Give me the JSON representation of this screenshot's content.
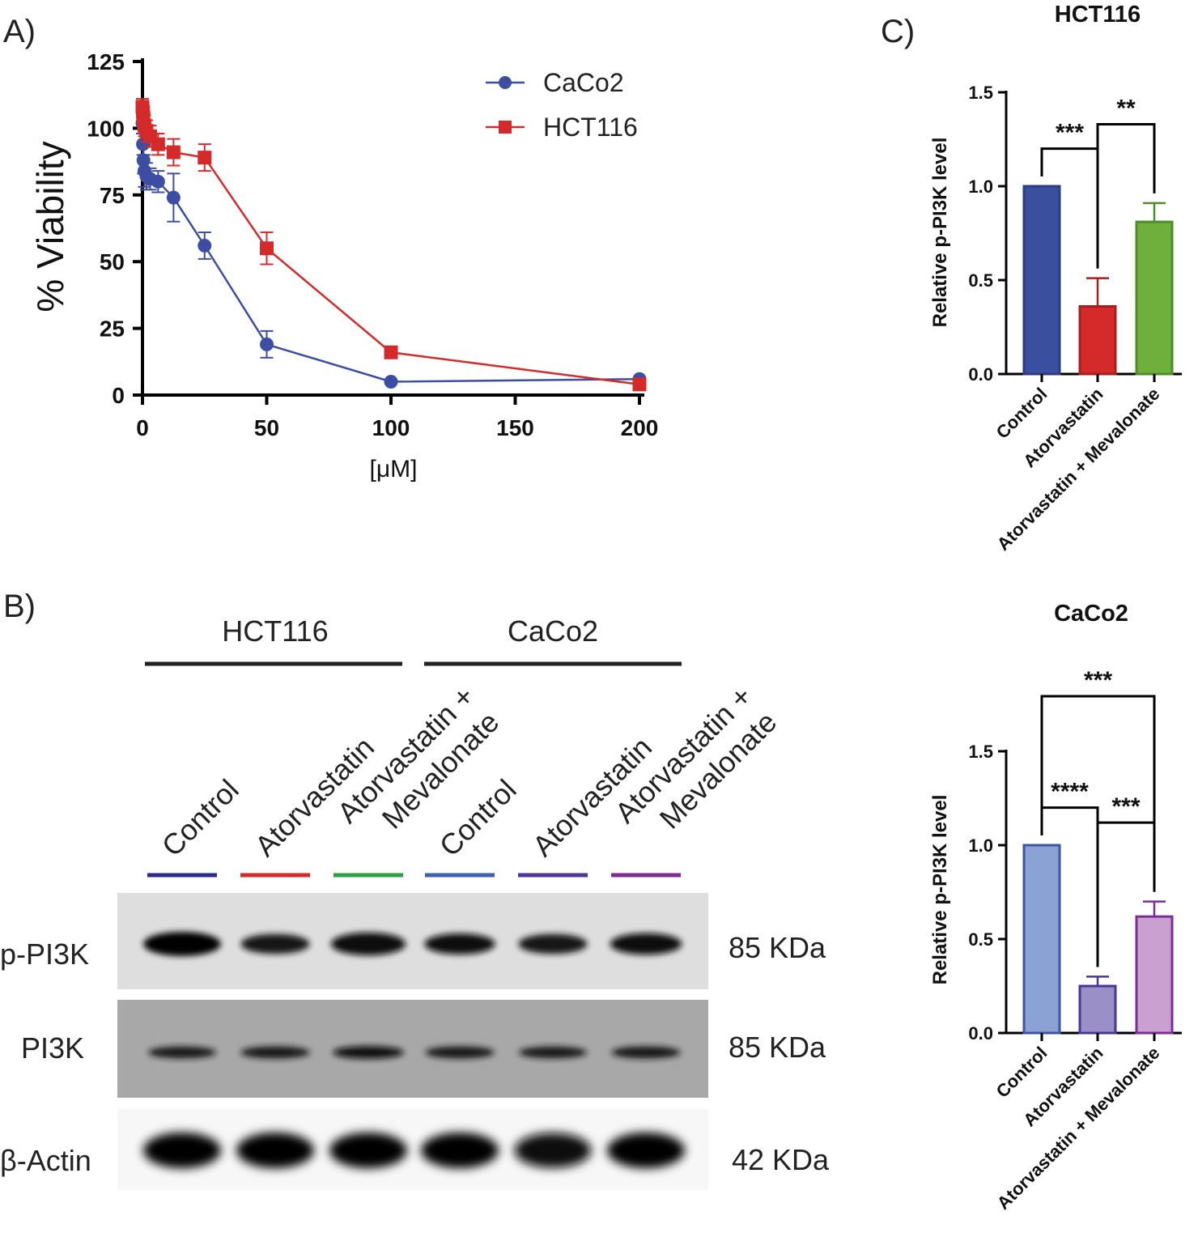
{
  "panels": {
    "a_label": "A)",
    "b_label": "B)",
    "c_label": "C)"
  },
  "blot": {
    "groups": [
      "HCT116",
      "CaCo2"
    ],
    "lanes": [
      {
        "label": "Control",
        "color": "#2b2a8c"
      },
      {
        "label": "Atorvastatin",
        "color": "#d42a2a"
      },
      {
        "label_line1": "Atorvastatin +",
        "label_line2": "Mevalonate",
        "color": "#2e9e45"
      },
      {
        "label": "Control",
        "color": "#3e5fae"
      },
      {
        "label": "Atorvastatin",
        "color": "#4b3596"
      },
      {
        "label_line1": "Atorvastatin +",
        "label_line2": "Mevalonate",
        "color": "#7b2f94"
      }
    ],
    "rows": [
      {
        "protein": "p-PI3K",
        "size": "85 KDa",
        "intensity": [
          1.0,
          0.55,
          0.85,
          0.65,
          0.55,
          0.7
        ]
      },
      {
        "protein": "PI3K",
        "size": "85 KDa",
        "intensity": [
          0.5,
          0.55,
          0.65,
          0.55,
          0.5,
          0.55
        ]
      },
      {
        "protein": "β-Actin",
        "size": "42 KDa",
        "intensity": [
          1.0,
          1.0,
          1.0,
          1.0,
          0.95,
          1.0
        ]
      }
    ]
  },
  "chart_data": [
    {
      "type": "line",
      "panel": "A",
      "title": "",
      "xlabel": "[μM]",
      "ylabel": "% Viability",
      "xlim": [
        0,
        200
      ],
      "ylim": [
        0,
        125
      ],
      "xticks": [
        "0",
        "50",
        "100",
        "150",
        "200"
      ],
      "yticks": [
        "0",
        "25",
        "50",
        "75",
        "100",
        "125"
      ],
      "legend_position": "top-right",
      "series": [
        {
          "name": "CaCo2",
          "color": "#3b4ea3",
          "marker": "circle",
          "x": [
            0,
            0.2,
            0.4,
            0.8,
            1.6,
            3.1,
            6.3,
            12.5,
            25,
            50,
            100,
            200
          ],
          "y": [
            102,
            94,
            88,
            84,
            82,
            81,
            80,
            74,
            56,
            19,
            5,
            6
          ],
          "err": [
            4,
            4,
            5,
            6,
            5,
            4,
            4,
            9,
            5,
            5,
            1,
            1
          ]
        },
        {
          "name": "HCT116",
          "color": "#d42a2a",
          "marker": "square",
          "x": [
            0,
            0.2,
            0.4,
            0.8,
            1.6,
            3.1,
            6.3,
            12.5,
            25,
            50,
            100,
            200
          ],
          "y": [
            108,
            106,
            104,
            101,
            99,
            97,
            94,
            91,
            89,
            55,
            16,
            4
          ],
          "err": [
            3,
            3,
            4,
            4,
            4,
            4,
            4,
            5,
            5,
            6,
            1,
            1
          ]
        }
      ]
    },
    {
      "type": "bar",
      "panel": "C",
      "title": "HCT116",
      "ylabel": "Relative p-PI3K level",
      "ylim": [
        0,
        1.5
      ],
      "yticks": [
        "0.0",
        "0.5",
        "1.0",
        "1.5"
      ],
      "categories": [
        "Control",
        "Atorvastatin",
        "Atorvastatin + Mevalonate"
      ],
      "values": [
        1.0,
        0.36,
        0.81
      ],
      "errors": [
        0,
        0.15,
        0.1
      ],
      "colors": [
        "#3a4f9e",
        "#d42a2a",
        "#6fb03d"
      ],
      "edge_colors": [
        "#2b3c82",
        "#a81f1f",
        "#4f8c2a"
      ],
      "significance": [
        {
          "from": 0,
          "to": 1,
          "label": "***"
        },
        {
          "from": 1,
          "to": 2,
          "label": "**"
        }
      ]
    },
    {
      "type": "bar",
      "panel": "C",
      "title": "CaCo2",
      "ylabel": "Relative p-PI3K level",
      "ylim": [
        0,
        1.5
      ],
      "yticks": [
        "0.0",
        "0.5",
        "1.0",
        "1.5"
      ],
      "categories": [
        "Control",
        "Atorvastatin",
        "Atorvastatin + Mevalonate"
      ],
      "values": [
        1.0,
        0.25,
        0.62
      ],
      "errors": [
        0,
        0.05,
        0.08
      ],
      "colors": [
        "#8ba3d4",
        "#9b8fc8",
        "#c9a0d0"
      ],
      "edge_colors": [
        "#3d56a0",
        "#4a3790",
        "#7b2f94"
      ],
      "significance": [
        {
          "from": 0,
          "to": 1,
          "label": "****"
        },
        {
          "from": 1,
          "to": 2,
          "label": "***"
        },
        {
          "from": 0,
          "to": 2,
          "label": "***"
        }
      ]
    }
  ]
}
